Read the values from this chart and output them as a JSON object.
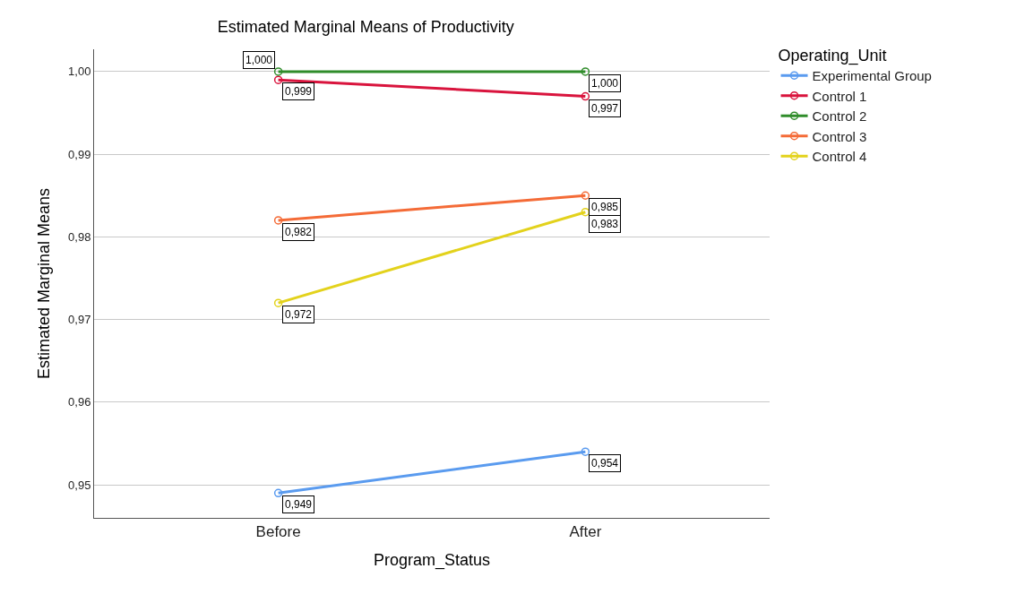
{
  "chart_data": {
    "type": "line",
    "title": "Estimated Marginal Means of Productivity",
    "xlabel": "Program_Status",
    "ylabel": "Estimated Marginal Means",
    "legend_title": "Operating_Unit",
    "categories": [
      "Before",
      "After"
    ],
    "series": [
      {
        "name": "Experimental Group",
        "color": "#5a9bef",
        "values": [
          0.949,
          0.954
        ],
        "value_labels": [
          "0,949",
          "0,954"
        ]
      },
      {
        "name": "Control 1",
        "color": "#d9143d",
        "values": [
          0.999,
          0.997
        ],
        "value_labels": [
          "0,999",
          "0,997"
        ]
      },
      {
        "name": "Control 2",
        "color": "#2f8c2a",
        "values": [
          1.0,
          1.0
        ],
        "value_labels": [
          "1,000",
          "1,000"
        ]
      },
      {
        "name": "Control 3",
        "color": "#f46b37",
        "values": [
          0.982,
          0.985
        ],
        "value_labels": [
          "0,982",
          "0,985"
        ]
      },
      {
        "name": "Control 4",
        "color": "#e3d21c",
        "values": [
          0.972,
          0.983
        ],
        "value_labels": [
          "0,972",
          "0,983"
        ]
      }
    ],
    "ylim": [
      0.946,
      1.0027
    ],
    "yticks": [
      {
        "value": 0.95,
        "label": "0,95"
      },
      {
        "value": 0.96,
        "label": "0,96"
      },
      {
        "value": 0.97,
        "label": "0,97"
      },
      {
        "value": 0.98,
        "label": "0,98"
      },
      {
        "value": 0.99,
        "label": "0,99"
      },
      {
        "value": 1.0,
        "label": "1,00"
      }
    ],
    "grid": "y",
    "legend": "top right",
    "marker": "circle",
    "line_style": "solid"
  }
}
